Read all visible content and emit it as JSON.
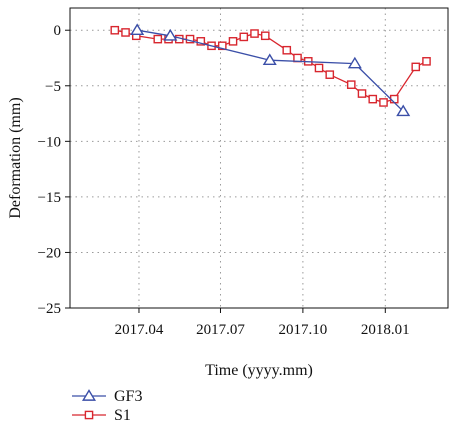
{
  "chart_data": {
    "type": "line",
    "xlabel": "Time (yyyy.mm)",
    "ylabel": "Deformation (mm)",
    "xlim": [
      "2017-01-14",
      "2018-03-12"
    ],
    "ylim": [
      -25,
      2
    ],
    "x_ticks": [
      {
        "date": "2017-04-01",
        "label": "2017.04"
      },
      {
        "date": "2017-07-01",
        "label": "2017.07"
      },
      {
        "date": "2017-10-01",
        "label": "2017.10"
      },
      {
        "date": "2018-01-01",
        "label": "2018.01"
      }
    ],
    "y_ticks": [
      {
        "value": 0,
        "label": "0"
      },
      {
        "value": -5,
        "label": "−5"
      },
      {
        "value": -10,
        "label": "−10"
      },
      {
        "value": -15,
        "label": "−15"
      },
      {
        "value": -20,
        "label": "−20"
      },
      {
        "value": -25,
        "label": "−25"
      }
    ],
    "grid": true,
    "legend_position": "bottom-left-outside",
    "series": [
      {
        "name": "GF3",
        "color": "#3b4fa8",
        "marker": "triangle",
        "points": [
          {
            "x": "2017-03-30",
            "y": 0.0
          },
          {
            "x": "2017-05-06",
            "y": -0.5
          },
          {
            "x": "2017-08-25",
            "y": -2.7
          },
          {
            "x": "2017-11-28",
            "y": -3.0
          },
          {
            "x": "2018-01-21",
            "y": -7.3
          }
        ]
      },
      {
        "name": "S1",
        "color": "#d8262e",
        "marker": "square",
        "points": [
          {
            "x": "2017-03-05",
            "y": 0.0
          },
          {
            "x": "2017-03-17",
            "y": -0.2
          },
          {
            "x": "2017-03-29",
            "y": -0.5
          },
          {
            "x": "2017-04-22",
            "y": -0.8
          },
          {
            "x": "2017-05-04",
            "y": -0.8
          },
          {
            "x": "2017-05-16",
            "y": -0.8
          },
          {
            "x": "2017-05-28",
            "y": -0.8
          },
          {
            "x": "2017-06-09",
            "y": -1.0
          },
          {
            "x": "2017-06-21",
            "y": -1.4
          },
          {
            "x": "2017-07-03",
            "y": -1.4
          },
          {
            "x": "2017-07-15",
            "y": -1.0
          },
          {
            "x": "2017-07-27",
            "y": -0.6
          },
          {
            "x": "2017-08-08",
            "y": -0.3
          },
          {
            "x": "2017-08-20",
            "y": -0.5
          },
          {
            "x": "2017-09-13",
            "y": -1.8
          },
          {
            "x": "2017-09-25",
            "y": -2.5
          },
          {
            "x": "2017-10-07",
            "y": -2.8
          },
          {
            "x": "2017-10-19",
            "y": -3.4
          },
          {
            "x": "2017-10-31",
            "y": -4.0
          },
          {
            "x": "2017-11-24",
            "y": -4.9
          },
          {
            "x": "2017-12-06",
            "y": -5.7
          },
          {
            "x": "2017-12-18",
            "y": -6.2
          },
          {
            "x": "2017-12-30",
            "y": -6.5
          },
          {
            "x": "2018-01-11",
            "y": -6.2
          },
          {
            "x": "2018-02-04",
            "y": -3.3
          },
          {
            "x": "2018-02-16",
            "y": -2.8
          }
        ]
      }
    ]
  }
}
